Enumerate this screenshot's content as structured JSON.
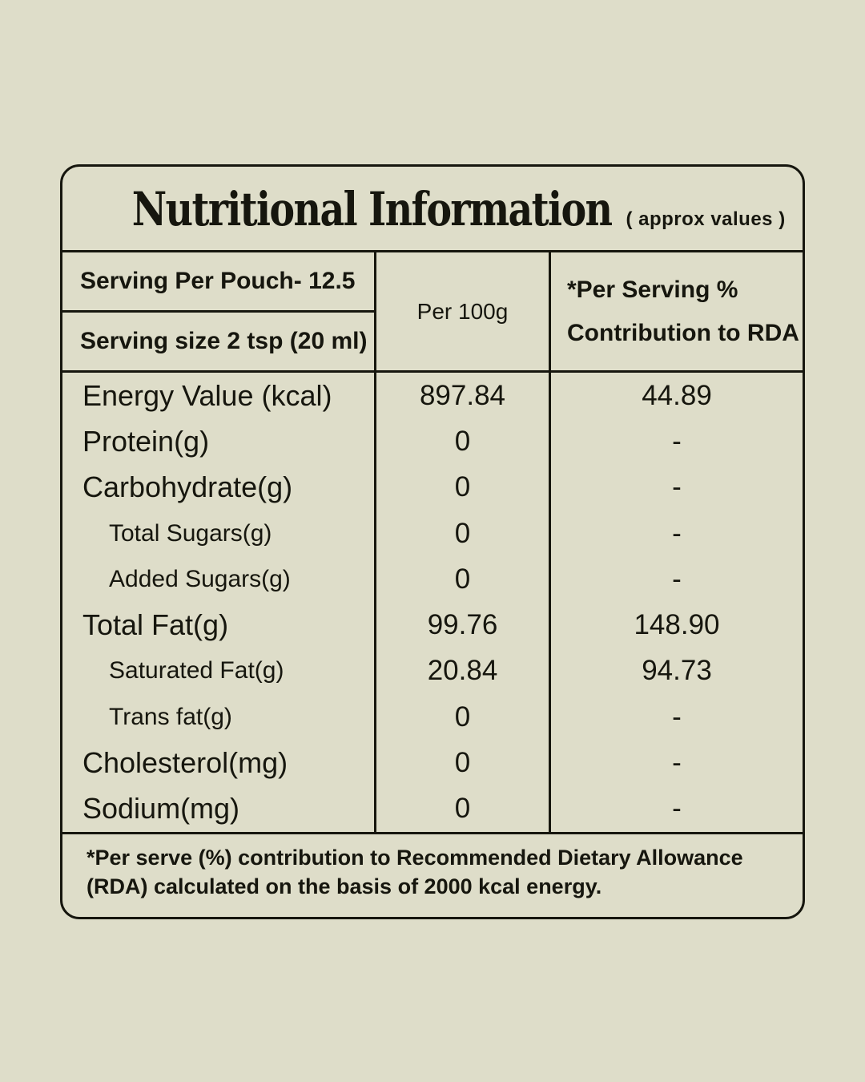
{
  "colors": {
    "background": "#deddc9",
    "ink": "#16160e"
  },
  "title": {
    "text": "Nutritional Information",
    "note": "( approx values )"
  },
  "header": {
    "serving_per_pouch": "Serving Per Pouch- 12.5",
    "serving_size": "Serving size 2 tsp (20 ml)",
    "per_100g": "Per 100g",
    "rda_line1": "*Per Serving %",
    "rda_line2": "Contribution to RDA"
  },
  "rows": [
    {
      "label": "Energy Value (kcal)",
      "indent": false,
      "per_100g": "897.84",
      "rda": "44.89"
    },
    {
      "label": "Protein(g)",
      "indent": false,
      "per_100g": "0",
      "rda": "-"
    },
    {
      "label": "Carbohydrate(g)",
      "indent": false,
      "per_100g": "0",
      "rda": "-"
    },
    {
      "label": "Total Sugars(g)",
      "indent": true,
      "per_100g": "0",
      "rda": "-"
    },
    {
      "label": "Added Sugars(g)",
      "indent": true,
      "per_100g": "0",
      "rda": "-"
    },
    {
      "label": "Total Fat(g)",
      "indent": false,
      "per_100g": "99.76",
      "rda": "148.90"
    },
    {
      "label": "Saturated Fat(g)",
      "indent": true,
      "per_100g": "20.84",
      "rda": "94.73"
    },
    {
      "label": "Trans fat(g)",
      "indent": true,
      "per_100g": "0",
      "rda": "-"
    },
    {
      "label": "Cholesterol(mg)",
      "indent": false,
      "per_100g": "0",
      "rda": "-"
    },
    {
      "label": "Sodium(mg)",
      "indent": false,
      "per_100g": "0",
      "rda": "-"
    }
  ],
  "footnote": {
    "line1": "*Per serve (%) contribution to Recommended Dietary Allowance",
    "line2": "(RDA) calculated on the basis of 2000 kcal energy."
  }
}
